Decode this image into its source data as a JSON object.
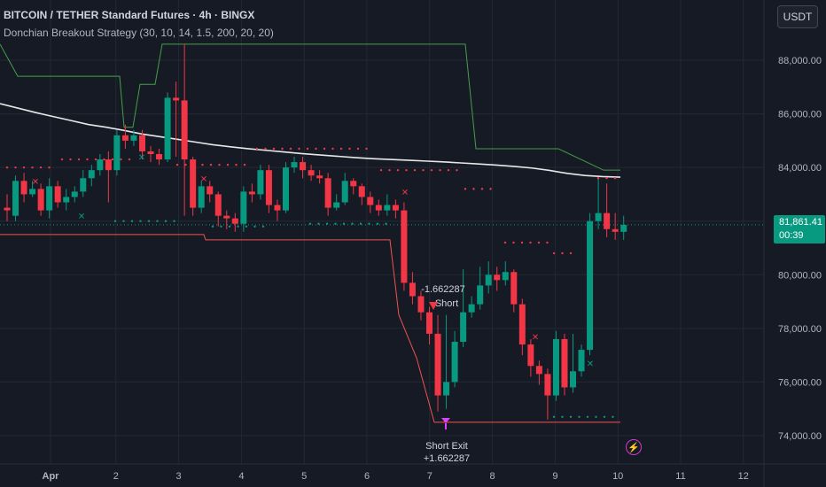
{
  "header": {
    "symbol_title": "BITCOIN / TETHER Standard Futures · 4h · BINGX",
    "indicator_label": "Donchian Breakout Strategy (30, 10, 14, 1.5, 200, 20, 20)",
    "currency_button": "USDT"
  },
  "last_price": {
    "value": "81,861.41",
    "countdown": "00:39",
    "color": "#089981"
  },
  "colors": {
    "background": "#161a25",
    "up": "#089981",
    "down": "#f23645",
    "upper_channel": "#43a047",
    "lower_channel": "#ef5350",
    "ma_line": "#e8e8e8",
    "dots_red": "#f23645",
    "dots_green": "#43a047",
    "signal": "#e040fb"
  },
  "chart_data": {
    "type": "candlestick",
    "title": "BITCOIN / TETHER Standard Futures · 4h · BINGX",
    "y_axis": {
      "ticks": [
        "74,000.00",
        "76,000.00",
        "78,000.00",
        "80,000.00",
        "82,000.00",
        "84,000.00",
        "86,000.00",
        "88,000.00"
      ],
      "range": [
        73600,
        89600
      ],
      "position": "right"
    },
    "x_axis": {
      "ticks": [
        "Apr",
        "2",
        "3",
        "4",
        "5",
        "6",
        "7",
        "8",
        "9",
        "10",
        "11",
        "12"
      ]
    },
    "candles": [
      [
        82500,
        82400,
        83000,
        82000
      ],
      [
        82200,
        83500,
        83700,
        82000
      ],
      [
        83500,
        83000,
        83800,
        82700
      ],
      [
        83000,
        83200,
        83500,
        82900
      ],
      [
        83200,
        82400,
        83400,
        82200
      ],
      [
        82400,
        83300,
        83600,
        82100
      ],
      [
        83300,
        82700,
        83500,
        82500
      ],
      [
        82700,
        82900,
        83200,
        82400
      ],
      [
        82900,
        83100,
        83300,
        82700
      ],
      [
        83100,
        83600,
        83900,
        82900
      ],
      [
        83600,
        83900,
        84100,
        83300
      ],
      [
        83900,
        84300,
        84500,
        83700
      ],
      [
        84300,
        83900,
        84600,
        82700
      ],
      [
        83900,
        85200,
        85400,
        83700
      ],
      [
        85200,
        85000,
        85600,
        84700
      ],
      [
        85000,
        85200,
        85400,
        84800
      ],
      [
        85200,
        84600,
        85400,
        84300
      ],
      [
        84600,
        84500,
        84800,
        84200
      ],
      [
        84500,
        84300,
        84700,
        84100
      ],
      [
        84300,
        86600,
        86800,
        84200
      ],
      [
        86600,
        86500,
        87200,
        84400
      ],
      [
        86500,
        84300,
        88600,
        82200
      ],
      [
        84300,
        82500,
        84400,
        82200
      ],
      [
        82500,
        83300,
        83500,
        82300
      ],
      [
        83300,
        83000,
        83500,
        82700
      ],
      [
        83000,
        82200,
        83100,
        81800
      ],
      [
        82200,
        82100,
        82400,
        81700
      ],
      [
        82100,
        81900,
        82300,
        81600
      ],
      [
        81900,
        83100,
        83300,
        81600
      ],
      [
        83100,
        83000,
        83400,
        82700
      ],
      [
        83000,
        83900,
        84100,
        82800
      ],
      [
        83900,
        82600,
        84100,
        82300
      ],
      [
        82600,
        82400,
        82800,
        82000
      ],
      [
        82400,
        84000,
        84200,
        82300
      ],
      [
        84000,
        84200,
        84400,
        83800
      ],
      [
        84200,
        83900,
        84400,
        83600
      ],
      [
        83900,
        83700,
        84100,
        83500
      ],
      [
        83700,
        83600,
        83900,
        83400
      ],
      [
        83600,
        82500,
        83800,
        82200
      ],
      [
        82500,
        82700,
        83000,
        82400
      ],
      [
        82700,
        83500,
        83800,
        82600
      ],
      [
        83500,
        83300,
        83600,
        83000
      ],
      [
        83300,
        82900,
        83400,
        82600
      ],
      [
        82900,
        82600,
        83100,
        82300
      ],
      [
        82600,
        82400,
        82800,
        82200
      ],
      [
        82400,
        82600,
        83000,
        82200
      ],
      [
        82600,
        82400,
        82800,
        82100
      ],
      [
        82400,
        79700,
        82700,
        79400
      ],
      [
        79700,
        79200,
        80100,
        78900
      ],
      [
        79200,
        78600,
        79400,
        78300
      ],
      [
        78600,
        77800,
        78800,
        77400
      ],
      [
        77800,
        75500,
        78500,
        74900
      ],
      [
        75500,
        76000,
        78500,
        75000
      ],
      [
        76000,
        77500,
        77900,
        75800
      ],
      [
        77500,
        78600,
        80200,
        77300
      ],
      [
        78600,
        78900,
        79200,
        78400
      ],
      [
        78900,
        79600,
        80300,
        78700
      ],
      [
        79600,
        80000,
        80500,
        79300
      ],
      [
        80000,
        79800,
        80300,
        79400
      ],
      [
        79800,
        80100,
        80500,
        79600
      ],
      [
        80100,
        78900,
        80200,
        78600
      ],
      [
        78900,
        77400,
        79100,
        77000
      ],
      [
        77400,
        76600,
        77600,
        76200
      ],
      [
        76600,
        76300,
        76800,
        75900
      ],
      [
        76300,
        75500,
        76500,
        74600
      ],
      [
        75500,
        77600,
        77900,
        75300
      ],
      [
        77600,
        75800,
        77800,
        75500
      ],
      [
        75800,
        76400,
        77800,
        75600
      ],
      [
        76400,
        77200,
        77400,
        76200
      ],
      [
        77200,
        82000,
        82300,
        77000
      ],
      [
        82000,
        82300,
        83600,
        81700
      ],
      [
        82300,
        81700,
        83400,
        81400
      ],
      [
        81700,
        81600,
        82300,
        81300
      ],
      [
        81600,
        81861,
        82200,
        81300
      ]
    ],
    "series": [
      {
        "name": "",
        "type": "ma",
        "values": [
          [
            0,
            86380
          ],
          [
            40,
            86050
          ],
          [
            60,
            85900
          ],
          [
            80,
            85750
          ],
          [
            100,
            85600
          ],
          [
            120,
            85500
          ],
          [
            140,
            85380
          ],
          [
            160,
            85250
          ],
          [
            180,
            85150
          ],
          [
            200,
            85050
          ],
          [
            220,
            84950
          ],
          [
            240,
            84850
          ],
          [
            260,
            84770
          ],
          [
            280,
            84700
          ],
          [
            300,
            84640
          ],
          [
            320,
            84580
          ],
          [
            340,
            84520
          ],
          [
            360,
            84470
          ],
          [
            380,
            84420
          ],
          [
            400,
            84370
          ],
          [
            420,
            84330
          ],
          [
            440,
            84300
          ],
          [
            460,
            84270
          ],
          [
            480,
            84240
          ],
          [
            500,
            84210
          ],
          [
            520,
            84170
          ],
          [
            540,
            84130
          ],
          [
            560,
            84090
          ],
          [
            580,
            84040
          ],
          [
            600,
            83980
          ],
          [
            620,
            83890
          ],
          [
            640,
            83780
          ],
          [
            660,
            83700
          ],
          [
            680,
            83660
          ],
          [
            700,
            83640
          ]
        ]
      },
      {
        "name": "",
        "type": "upper",
        "values": [
          [
            0,
            88600
          ],
          [
            20,
            87400
          ],
          [
            40,
            87400
          ],
          [
            135,
            87400
          ],
          [
            140,
            85500
          ],
          [
            150,
            85500
          ],
          [
            158,
            87100
          ],
          [
            175,
            87100
          ],
          [
            183,
            88600
          ],
          [
            525,
            88600
          ],
          [
            537,
            84700
          ],
          [
            630,
            84700
          ],
          [
            681,
            83900
          ],
          [
            700,
            83900
          ]
        ]
      },
      {
        "name": "",
        "type": "lower",
        "values": [
          [
            0,
            81500
          ],
          [
            120,
            81500
          ],
          [
            230,
            81500
          ],
          [
            232,
            81300
          ],
          [
            440,
            81300
          ],
          [
            450,
            78500
          ],
          [
            470,
            76900
          ],
          [
            490,
            74500
          ],
          [
            700,
            74500
          ]
        ]
      }
    ],
    "markers": [
      {
        "text": "-1.662287",
        "bar": 48,
        "price": 80000
      },
      {
        "text": "Short",
        "bar": 48,
        "price": 79250
      },
      {
        "text": "Short Exit",
        "bar": 51,
        "price": 74050
      },
      {
        "text": "+1.662287",
        "bar": 51,
        "price": 73550
      }
    ]
  }
}
